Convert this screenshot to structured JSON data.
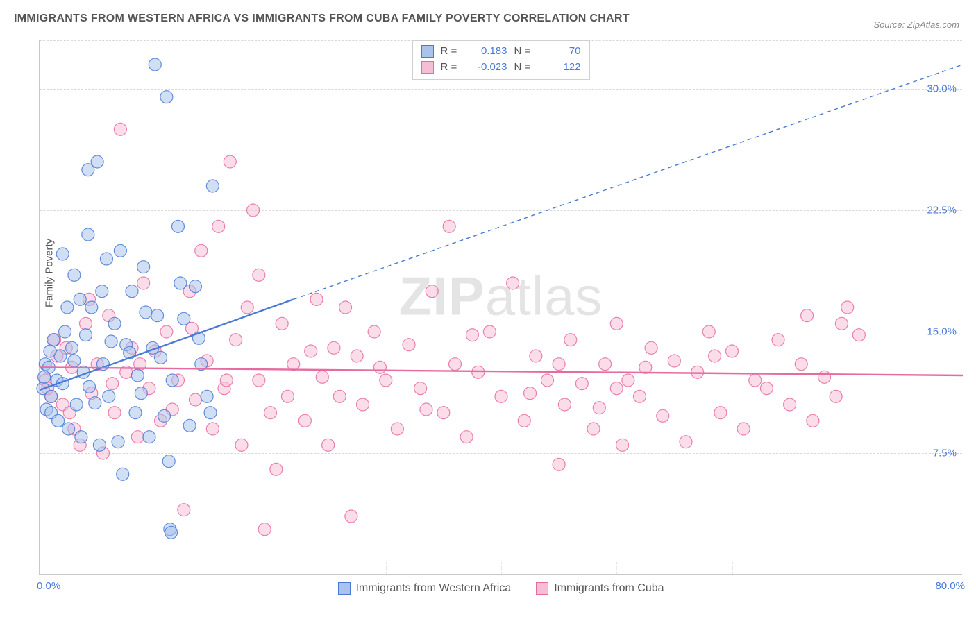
{
  "title": "IMMIGRANTS FROM WESTERN AFRICA VS IMMIGRANTS FROM CUBA FAMILY POVERTY CORRELATION CHART",
  "source_prefix": "Source: ",
  "source_site": "ZipAtlas.com",
  "ylabel": "Family Poverty",
  "watermark_bold": "ZIP",
  "watermark_thin": "atlas",
  "chart": {
    "type": "scatter",
    "xlim": [
      0,
      80
    ],
    "ylim": [
      0,
      33
    ],
    "xticks_major": [
      0,
      80
    ],
    "xticks_minor": [
      10,
      20,
      30,
      40,
      50,
      60,
      70
    ],
    "yticks": [
      7.5,
      15.0,
      22.5,
      30.0
    ],
    "xtick_labels": [
      "0.0%",
      "80.0%"
    ],
    "ytick_labels": [
      "7.5%",
      "15.0%",
      "22.5%",
      "30.0%"
    ],
    "xtick_minor_show": true,
    "background_color": "#ffffff",
    "grid_color_h": "#d8d8d8",
    "grid_color_v": "#e4e4e4",
    "axis_color": "#c8c8c8",
    "tick_label_color": "#4a79d6",
    "label_fontsize": 15,
    "title_fontsize": 16,
    "marker_radius": 9,
    "marker_stroke_width": 1.2,
    "marker_fill_opacity": 0.28,
    "line_width_solid": 2.4,
    "line_width_dashed": 1.4,
    "dash_pattern": "6,5"
  },
  "series": [
    {
      "name": "Immigrants from Western Africa",
      "color_stroke": "#4a79d6",
      "color_fill": "#a9c3ec",
      "r": 0.183,
      "n": 70,
      "trend_solid": {
        "x1": 0,
        "y1": 11.4,
        "x2": 22,
        "y2": 17.0
      },
      "trend_dashed": {
        "x1": 22,
        "y1": 17.0,
        "x2": 80,
        "y2": 31.5
      },
      "points": [
        [
          0.3,
          11.5
        ],
        [
          0.5,
          13.0
        ],
        [
          0.6,
          10.2
        ],
        [
          0.8,
          12.8
        ],
        [
          1.0,
          11.0
        ],
        [
          1.2,
          14.5
        ],
        [
          1.5,
          12.0
        ],
        [
          1.0,
          10.0
        ],
        [
          1.8,
          13.5
        ],
        [
          2.0,
          11.8
        ],
        [
          2.2,
          15.0
        ],
        [
          0.4,
          12.2
        ],
        [
          2.5,
          9.0
        ],
        [
          2.8,
          14.0
        ],
        [
          3.0,
          13.2
        ],
        [
          3.2,
          10.5
        ],
        [
          3.5,
          17.0
        ],
        [
          3.8,
          12.5
        ],
        [
          4.0,
          14.8
        ],
        [
          4.2,
          21.0
        ],
        [
          4.3,
          11.6
        ],
        [
          4.5,
          16.5
        ],
        [
          5.0,
          25.5
        ],
        [
          5.2,
          8.0
        ],
        [
          5.5,
          13.0
        ],
        [
          5.8,
          19.5
        ],
        [
          6.0,
          11.0
        ],
        [
          6.5,
          15.5
        ],
        [
          7.0,
          20.0
        ],
        [
          7.2,
          6.2
        ],
        [
          7.5,
          14.2
        ],
        [
          8.0,
          17.5
        ],
        [
          8.5,
          12.3
        ],
        [
          9.0,
          19.0
        ],
        [
          9.5,
          8.5
        ],
        [
          10.0,
          31.5
        ],
        [
          10.2,
          16.0
        ],
        [
          10.5,
          13.4
        ],
        [
          11.0,
          29.5
        ],
        [
          11.2,
          7.0
        ],
        [
          11.3,
          2.8
        ],
        [
          11.4,
          2.6
        ],
        [
          11.5,
          12.0
        ],
        [
          12.0,
          21.5
        ],
        [
          12.5,
          15.8
        ],
        [
          13.0,
          9.2
        ],
        [
          13.5,
          17.8
        ],
        [
          14.0,
          13.0
        ],
        [
          14.5,
          11.0
        ],
        [
          15.0,
          24.0
        ],
        [
          4.2,
          25.0
        ],
        [
          6.8,
          8.2
        ],
        [
          8.3,
          10.0
        ],
        [
          9.8,
          14.0
        ],
        [
          3.6,
          8.5
        ],
        [
          2.4,
          16.5
        ],
        [
          1.6,
          9.5
        ],
        [
          0.9,
          13.8
        ],
        [
          5.4,
          17.5
        ],
        [
          7.8,
          13.7
        ],
        [
          4.8,
          10.6
        ],
        [
          6.2,
          14.4
        ],
        [
          3.0,
          18.5
        ],
        [
          8.8,
          11.2
        ],
        [
          2.0,
          19.8
        ],
        [
          10.8,
          9.8
        ],
        [
          12.2,
          18.0
        ],
        [
          9.2,
          16.2
        ],
        [
          13.8,
          14.6
        ],
        [
          14.8,
          10.0
        ]
      ]
    },
    {
      "name": "Immigrants from Cuba",
      "color_stroke": "#e66ba0",
      "color_fill": "#f6bed4",
      "r": -0.023,
      "n": 122,
      "trend_solid": {
        "x1": 0,
        "y1": 12.8,
        "x2": 80,
        "y2": 12.3
      },
      "trend_dashed": null,
      "points": [
        [
          0.5,
          12.0
        ],
        [
          1.0,
          11.0
        ],
        [
          1.5,
          13.5
        ],
        [
          2.0,
          10.5
        ],
        [
          2.3,
          14.0
        ],
        [
          2.8,
          12.8
        ],
        [
          3.0,
          9.0
        ],
        [
          3.5,
          8.0
        ],
        [
          4.0,
          15.5
        ],
        [
          4.5,
          11.2
        ],
        [
          5.0,
          13.0
        ],
        [
          5.5,
          7.5
        ],
        [
          6.0,
          16.0
        ],
        [
          6.5,
          10.0
        ],
        [
          7.0,
          27.5
        ],
        [
          7.5,
          12.5
        ],
        [
          8.0,
          14.0
        ],
        [
          8.5,
          8.5
        ],
        [
          9.0,
          18.0
        ],
        [
          9.5,
          11.5
        ],
        [
          10.0,
          13.8
        ],
        [
          10.5,
          9.5
        ],
        [
          11.0,
          15.0
        ],
        [
          12.0,
          12.0
        ],
        [
          12.5,
          4.0
        ],
        [
          13.0,
          17.5
        ],
        [
          13.5,
          10.8
        ],
        [
          14.0,
          20.0
        ],
        [
          14.5,
          13.2
        ],
        [
          15.0,
          9.0
        ],
        [
          15.5,
          21.5
        ],
        [
          16.0,
          11.5
        ],
        [
          16.5,
          25.5
        ],
        [
          17.0,
          14.5
        ],
        [
          17.5,
          8.0
        ],
        [
          18.0,
          16.5
        ],
        [
          18.5,
          22.5
        ],
        [
          19.0,
          12.0
        ],
        [
          19.5,
          2.8
        ],
        [
          20.0,
          10.0
        ],
        [
          20.5,
          6.5
        ],
        [
          21.0,
          15.5
        ],
        [
          21.5,
          11.0
        ],
        [
          22.0,
          13.0
        ],
        [
          23.0,
          9.5
        ],
        [
          24.0,
          17.0
        ],
        [
          24.5,
          12.2
        ],
        [
          25.0,
          8.0
        ],
        [
          25.5,
          14.0
        ],
        [
          26.0,
          11.0
        ],
        [
          27.0,
          3.6
        ],
        [
          27.5,
          13.5
        ],
        [
          28.0,
          10.5
        ],
        [
          29.0,
          15.0
        ],
        [
          30.0,
          12.0
        ],
        [
          31.0,
          9.0
        ],
        [
          32.0,
          14.2
        ],
        [
          33.0,
          11.5
        ],
        [
          34.0,
          17.5
        ],
        [
          35.0,
          10.0
        ],
        [
          35.5,
          21.5
        ],
        [
          36.0,
          13.0
        ],
        [
          37.0,
          8.5
        ],
        [
          38.0,
          12.5
        ],
        [
          39.0,
          15.0
        ],
        [
          40.0,
          11.0
        ],
        [
          41.0,
          18.0
        ],
        [
          42.0,
          9.5
        ],
        [
          43.0,
          13.5
        ],
        [
          44.0,
          12.0
        ],
        [
          45.0,
          6.8
        ],
        [
          45.5,
          10.5
        ],
        [
          46.0,
          14.5
        ],
        [
          47.0,
          11.8
        ],
        [
          48.0,
          9.0
        ],
        [
          49.0,
          13.0
        ],
        [
          50.0,
          15.5
        ],
        [
          50.5,
          8.0
        ],
        [
          51.0,
          12.0
        ],
        [
          52.0,
          11.0
        ],
        [
          53.0,
          14.0
        ],
        [
          54.0,
          9.8
        ],
        [
          55.0,
          13.2
        ],
        [
          56.0,
          8.2
        ],
        [
          57.0,
          12.5
        ],
        [
          58.0,
          15.0
        ],
        [
          59.0,
          10.0
        ],
        [
          60.0,
          13.8
        ],
        [
          61.0,
          9.0
        ],
        [
          62.0,
          12.0
        ],
        [
          63.0,
          11.5
        ],
        [
          64.0,
          14.5
        ],
        [
          65.0,
          10.5
        ],
        [
          66.0,
          13.0
        ],
        [
          66.5,
          16.0
        ],
        [
          67.0,
          9.5
        ],
        [
          68.0,
          12.2
        ],
        [
          69.0,
          11.0
        ],
        [
          69.5,
          15.5
        ],
        [
          70.0,
          16.5
        ],
        [
          71.0,
          14.8
        ],
        [
          50.0,
          11.5
        ],
        [
          45.0,
          13.0
        ],
        [
          48.5,
          10.3
        ],
        [
          52.5,
          12.8
        ],
        [
          58.5,
          13.5
        ],
        [
          42.5,
          11.2
        ],
        [
          37.5,
          14.8
        ],
        [
          33.5,
          10.2
        ],
        [
          29.5,
          12.8
        ],
        [
          26.5,
          16.5
        ],
        [
          23.5,
          13.8
        ],
        [
          19.0,
          18.5
        ],
        [
          16.2,
          12.0
        ],
        [
          13.2,
          15.2
        ],
        [
          11.5,
          10.2
        ],
        [
          8.7,
          13.0
        ],
        [
          6.3,
          11.8
        ],
        [
          4.3,
          17.0
        ],
        [
          2.6,
          10.0
        ],
        [
          1.3,
          14.5
        ],
        [
          0.7,
          11.5
        ]
      ]
    }
  ],
  "legend_top": {
    "r_label": "R =",
    "n_label": "N ="
  }
}
